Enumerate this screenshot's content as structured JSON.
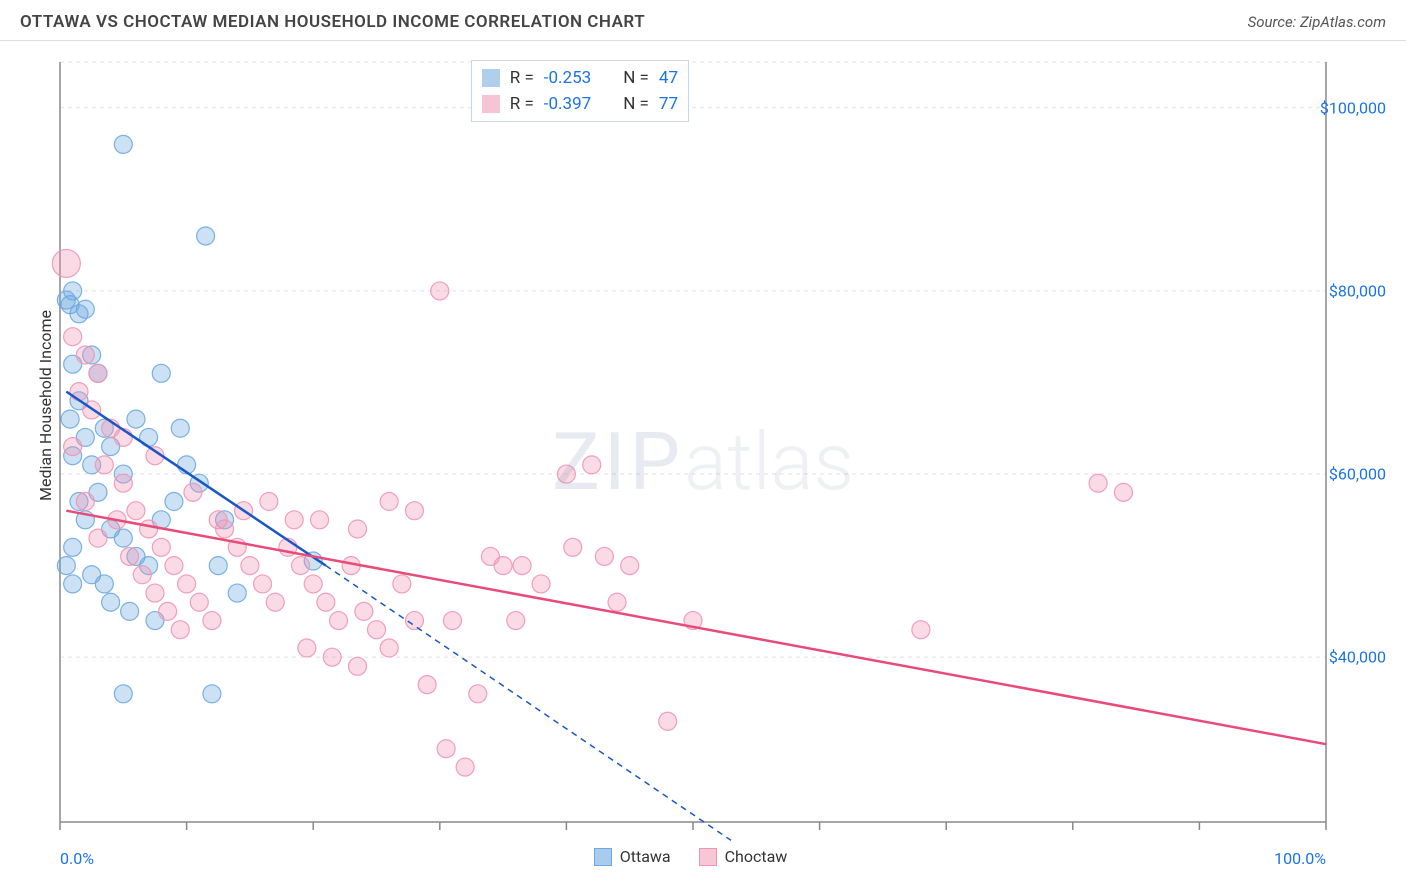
{
  "header": {
    "title": "OTTAWA VS CHOCTAW MEDIAN HOUSEHOLD INCOME CORRELATION CHART",
    "source": "Source: ZipAtlas.com"
  },
  "watermark": {
    "part1": "ZIP",
    "part2": "atlas"
  },
  "chart": {
    "type": "scatter",
    "background_color": "#ffffff",
    "grid_color": "#e0e0e0",
    "grid_dash": "4,4",
    "axis_color": "#888888",
    "text_color": "#333333",
    "value_color": "#1a73e8",
    "ylabel": "Median Household Income",
    "xlim": [
      0,
      100
    ],
    "ylim": [
      22000,
      105000
    ],
    "x_ticks": [
      0,
      10,
      20,
      30,
      40,
      50,
      60,
      70,
      80,
      90,
      100
    ],
    "x_tick_labels": {
      "0": "0.0%",
      "100": "100.0%"
    },
    "y_ticks": [
      40000,
      60000,
      80000,
      100000
    ],
    "y_tick_labels": {
      "40000": "$40,000",
      "60000": "$60,000",
      "80000": "$80,000",
      "100000": "$100,000"
    },
    "marker_radius": 9,
    "marker_fill_opacity": 0.35,
    "marker_stroke_opacity": 0.9,
    "marker_stroke_width": 1.2,
    "trend_line_width": 2.5,
    "trend_dash": "6,5",
    "series": [
      {
        "name": "Ottawa",
        "color": "#6ea8e0",
        "line_color": "#1a56c4",
        "R": "-0.253",
        "N": "47",
        "trend_solid": {
          "x1": 0.5,
          "y1": 69000,
          "x2": 21,
          "y2": 50000
        },
        "trend_dash": {
          "x1": 21,
          "y1": 50000,
          "x2": 53,
          "y2": 20000
        },
        "points": [
          [
            0.5,
            79000
          ],
          [
            0.8,
            78500
          ],
          [
            1.0,
            80000
          ],
          [
            1.5,
            77500
          ],
          [
            2.0,
            78000
          ],
          [
            1.0,
            72000
          ],
          [
            2.5,
            73000
          ],
          [
            3.0,
            71000
          ],
          [
            1.5,
            68000
          ],
          [
            0.8,
            66000
          ],
          [
            2.0,
            64000
          ],
          [
            3.5,
            65000
          ],
          [
            4.0,
            63000
          ],
          [
            1.0,
            62000
          ],
          [
            2.5,
            61000
          ],
          [
            5.0,
            60000
          ],
          [
            6.0,
            66000
          ],
          [
            7.0,
            64000
          ],
          [
            8.0,
            71000
          ],
          [
            9.5,
            65000
          ],
          [
            3.0,
            58000
          ],
          [
            1.5,
            57000
          ],
          [
            2.0,
            55000
          ],
          [
            4.0,
            54000
          ],
          [
            5.0,
            53000
          ],
          [
            1.0,
            52000
          ],
          [
            6.0,
            51000
          ],
          [
            7.0,
            50000
          ],
          [
            2.5,
            49000
          ],
          [
            3.5,
            48000
          ],
          [
            8.0,
            55000
          ],
          [
            9.0,
            57000
          ],
          [
            10.0,
            61000
          ],
          [
            11.0,
            59000
          ],
          [
            12.5,
            50000
          ],
          [
            4.0,
            46000
          ],
          [
            5.5,
            45000
          ],
          [
            7.5,
            44000
          ],
          [
            13.0,
            55000
          ],
          [
            14.0,
            47000
          ],
          [
            5.0,
            96000
          ],
          [
            11.5,
            86000
          ],
          [
            5.0,
            36000
          ],
          [
            12.0,
            36000
          ],
          [
            20.0,
            50500
          ],
          [
            0.5,
            50000
          ],
          [
            1.0,
            48000
          ]
        ]
      },
      {
        "name": "Choctaw",
        "color": "#f095b4",
        "line_color": "#e84a7a",
        "R": "-0.397",
        "N": "77",
        "trend_solid": {
          "x1": 0.5,
          "y1": 56000,
          "x2": 100,
          "y2": 30500
        },
        "trend_dash": null,
        "points": [
          [
            0.5,
            83000,
            14
          ],
          [
            1.0,
            75000
          ],
          [
            2.0,
            73000
          ],
          [
            3.0,
            71000
          ],
          [
            1.5,
            69000
          ],
          [
            2.5,
            67000
          ],
          [
            4.0,
            65000
          ],
          [
            1.0,
            63000
          ],
          [
            3.5,
            61000
          ],
          [
            5.0,
            59000
          ],
          [
            2.0,
            57000
          ],
          [
            6.0,
            56000
          ],
          [
            4.5,
            55000
          ],
          [
            7.0,
            54000
          ],
          [
            3.0,
            53000
          ],
          [
            8.0,
            52000
          ],
          [
            5.5,
            51000
          ],
          [
            9.0,
            50000
          ],
          [
            6.5,
            49000
          ],
          [
            10.0,
            48000
          ],
          [
            7.5,
            47000
          ],
          [
            11.0,
            46000
          ],
          [
            8.5,
            45000
          ],
          [
            12.0,
            44000
          ],
          [
            9.5,
            43000
          ],
          [
            13.0,
            54000
          ],
          [
            14.0,
            52000
          ],
          [
            15.0,
            50000
          ],
          [
            16.0,
            48000
          ],
          [
            17.0,
            46000
          ],
          [
            18.0,
            52000
          ],
          [
            19.0,
            50000
          ],
          [
            20.0,
            48000
          ],
          [
            21.0,
            46000
          ],
          [
            22.0,
            44000
          ],
          [
            23.0,
            50000
          ],
          [
            24.0,
            45000
          ],
          [
            25.0,
            43000
          ],
          [
            26.0,
            41000
          ],
          [
            27.0,
            48000
          ],
          [
            14.5,
            56000
          ],
          [
            16.5,
            57000
          ],
          [
            18.5,
            55000
          ],
          [
            20.5,
            55000
          ],
          [
            23.5,
            54000
          ],
          [
            28.0,
            44000
          ],
          [
            29.0,
            37000
          ],
          [
            30.0,
            80000
          ],
          [
            31.0,
            44000
          ],
          [
            33.0,
            36000
          ],
          [
            34.0,
            51000
          ],
          [
            35.0,
            50000
          ],
          [
            36.0,
            44000
          ],
          [
            26.0,
            57000
          ],
          [
            28.0,
            56000
          ],
          [
            32.0,
            28000
          ],
          [
            30.5,
            30000
          ],
          [
            19.5,
            41000
          ],
          [
            21.5,
            40000
          ],
          [
            23.5,
            39000
          ],
          [
            40.0,
            60000
          ],
          [
            42.0,
            61000
          ],
          [
            40.5,
            52000
          ],
          [
            43.0,
            51000
          ],
          [
            45.0,
            50000
          ],
          [
            48.0,
            33000
          ],
          [
            50.0,
            44000
          ],
          [
            44.0,
            46000
          ],
          [
            38.0,
            48000
          ],
          [
            36.5,
            50000
          ],
          [
            68.0,
            43000
          ],
          [
            82.0,
            59000
          ],
          [
            84.0,
            58000
          ],
          [
            12.5,
            55000
          ],
          [
            10.5,
            58000
          ],
          [
            7.5,
            62000
          ],
          [
            5.0,
            64000
          ]
        ]
      }
    ]
  },
  "legend_bottom": [
    {
      "label": "Ottawa",
      "color": "#a9cbed",
      "border": "#6ea8e0"
    },
    {
      "label": "Choctaw",
      "color": "#f7c7d6",
      "border": "#f095b4"
    }
  ]
}
